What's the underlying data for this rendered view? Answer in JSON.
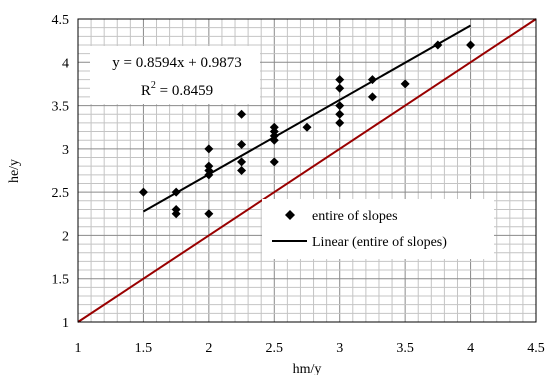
{
  "chart_data": {
    "type": "scatter",
    "xlabel": "hm/y",
    "ylabel": "he/y",
    "xlim": [
      1,
      4.5
    ],
    "ylim": [
      1,
      4.5
    ],
    "x_ticks": [
      "1",
      "1.5",
      "2",
      "2.5",
      "3",
      "3.5",
      "4",
      "4.5"
    ],
    "y_ticks": [
      "1",
      "1.5",
      "2",
      "2.5",
      "3",
      "3.5",
      "4",
      "4.5"
    ],
    "minor_grid_step": 0.1,
    "major_grid_step": 0.5,
    "grid": true,
    "series": [
      {
        "name": "entire of slopes",
        "marker": "diamond",
        "color": "#000000",
        "points": [
          [
            1.5,
            2.5
          ],
          [
            1.75,
            2.5
          ],
          [
            1.75,
            2.3
          ],
          [
            1.75,
            2.25
          ],
          [
            2.0,
            3.0
          ],
          [
            2.0,
            2.8
          ],
          [
            2.0,
            2.75
          ],
          [
            2.0,
            2.7
          ],
          [
            2.0,
            2.25
          ],
          [
            2.25,
            3.4
          ],
          [
            2.25,
            3.05
          ],
          [
            2.25,
            2.85
          ],
          [
            2.25,
            2.75
          ],
          [
            2.5,
            3.25
          ],
          [
            2.5,
            3.2
          ],
          [
            2.5,
            3.15
          ],
          [
            2.5,
            3.1
          ],
          [
            2.5,
            2.85
          ],
          [
            2.75,
            3.25
          ],
          [
            3.0,
            3.8
          ],
          [
            3.0,
            3.7
          ],
          [
            3.0,
            3.5
          ],
          [
            3.0,
            3.4
          ],
          [
            3.0,
            3.3
          ],
          [
            3.25,
            3.8
          ],
          [
            3.25,
            3.6
          ],
          [
            3.5,
            3.75
          ],
          [
            3.75,
            4.2
          ],
          [
            4.0,
            4.2
          ]
        ]
      }
    ],
    "trendline": {
      "name": "Linear (entire of slopes)",
      "slope": 0.8594,
      "intercept": 0.9873,
      "x_range": [
        1.5,
        4.0
      ],
      "color": "#000000",
      "equation": "y = 0.8594x + 0.9873",
      "r2_label": "R",
      "r2_sup": "2",
      "r2_value": " = 0.8459"
    },
    "reference_line": {
      "slope": 1,
      "intercept": 0,
      "color": "#990000"
    },
    "legend": {
      "placement": "lower-right"
    }
  }
}
